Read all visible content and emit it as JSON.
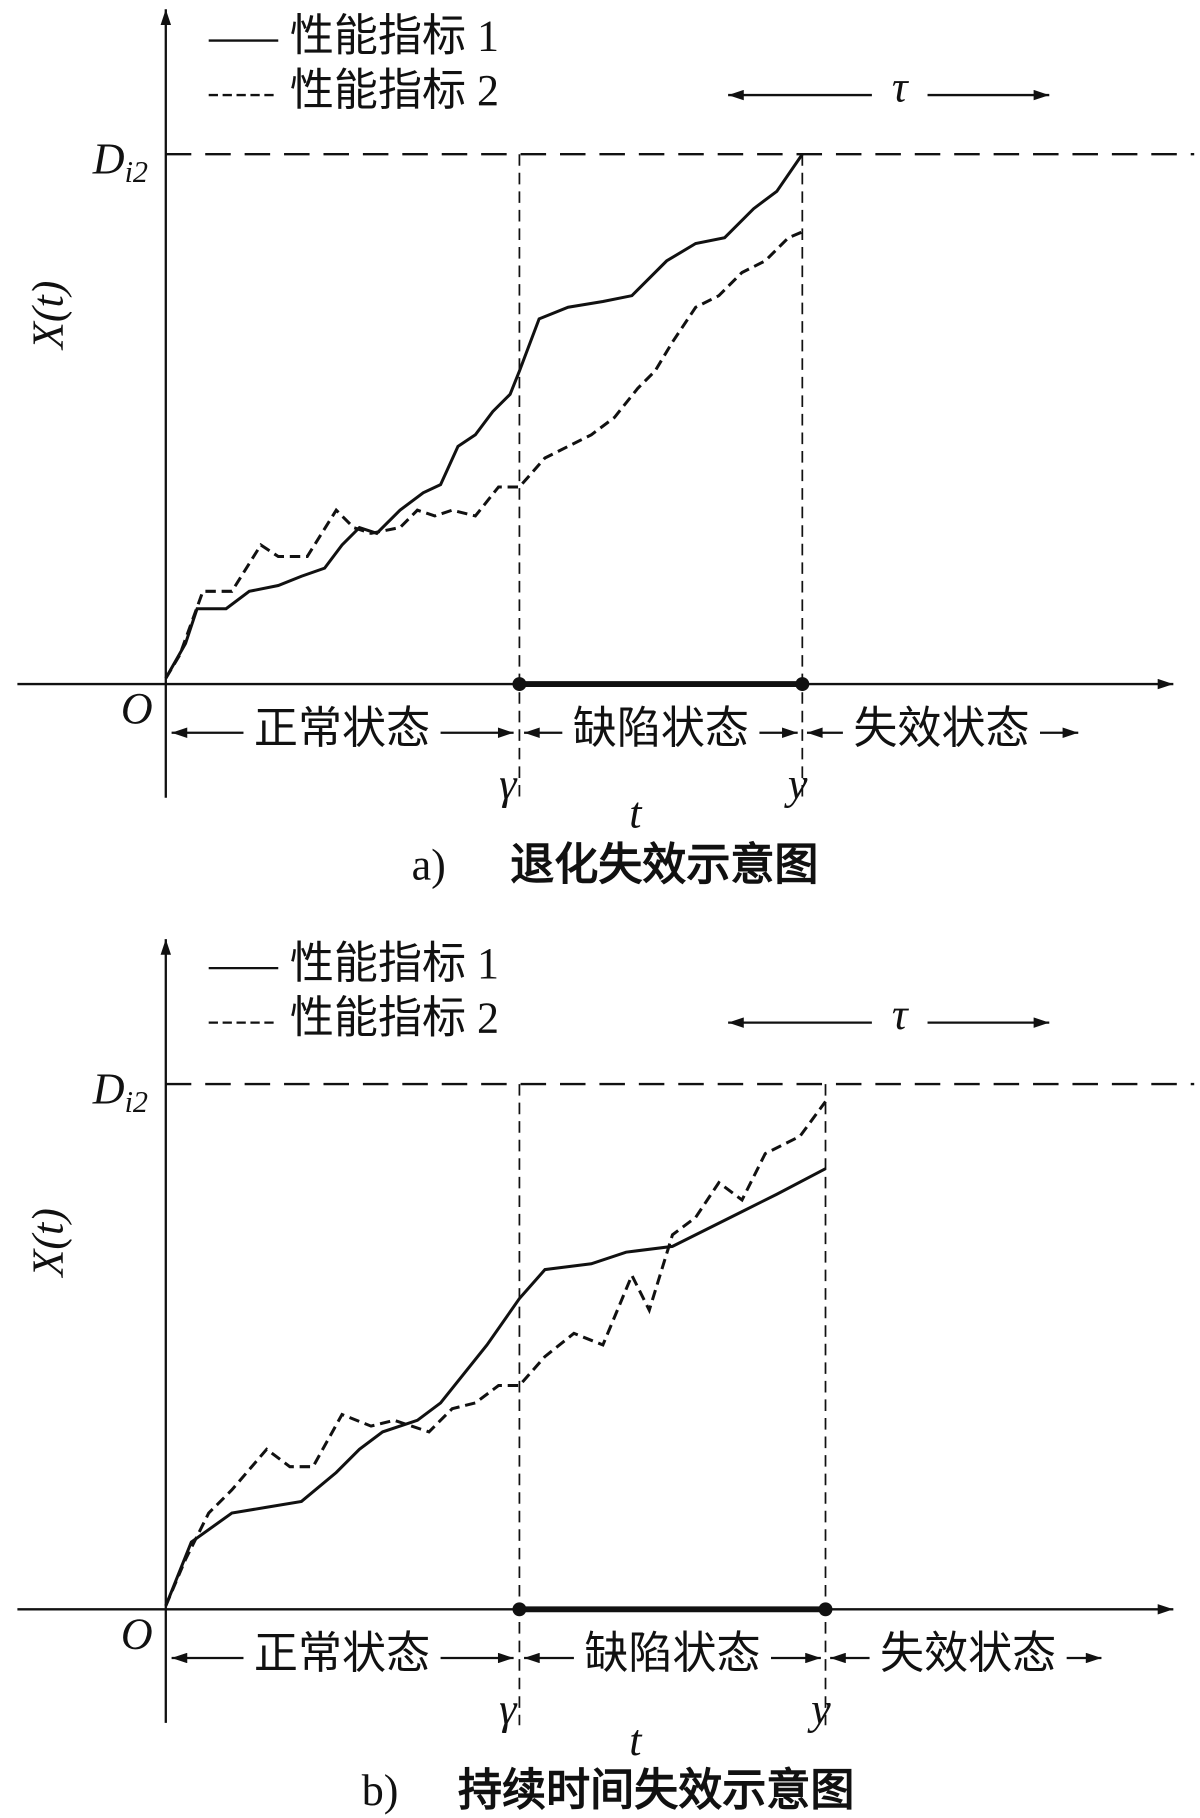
{
  "panels": [
    {
      "legend": [
        "性能指标 1",
        "性能指标 2"
      ],
      "y_label": "X(t)",
      "threshold": {
        "symbol": "D",
        "subscript": "i2"
      },
      "interval": "τ",
      "origin": "O",
      "states": [
        "正常状态",
        "缺陷状态",
        "失效状态"
      ],
      "x_marks": [
        "γ",
        "y"
      ],
      "x_label": "t",
      "caption": {
        "label": "a)",
        "title": "退化失效示意图"
      }
    },
    {
      "legend": [
        "性能指标 1",
        "性能指标 2"
      ],
      "y_label": "X(t)",
      "threshold": {
        "symbol": "D",
        "subscript": "i2"
      },
      "interval": "τ",
      "origin": "O",
      "states": [
        "正常状态",
        "缺陷状态",
        "失效状态"
      ],
      "x_marks": [
        "γ",
        "y"
      ],
      "x_label": "t",
      "caption": {
        "label": "b)",
        "title": "持续时间失效示意图"
      }
    }
  ]
}
